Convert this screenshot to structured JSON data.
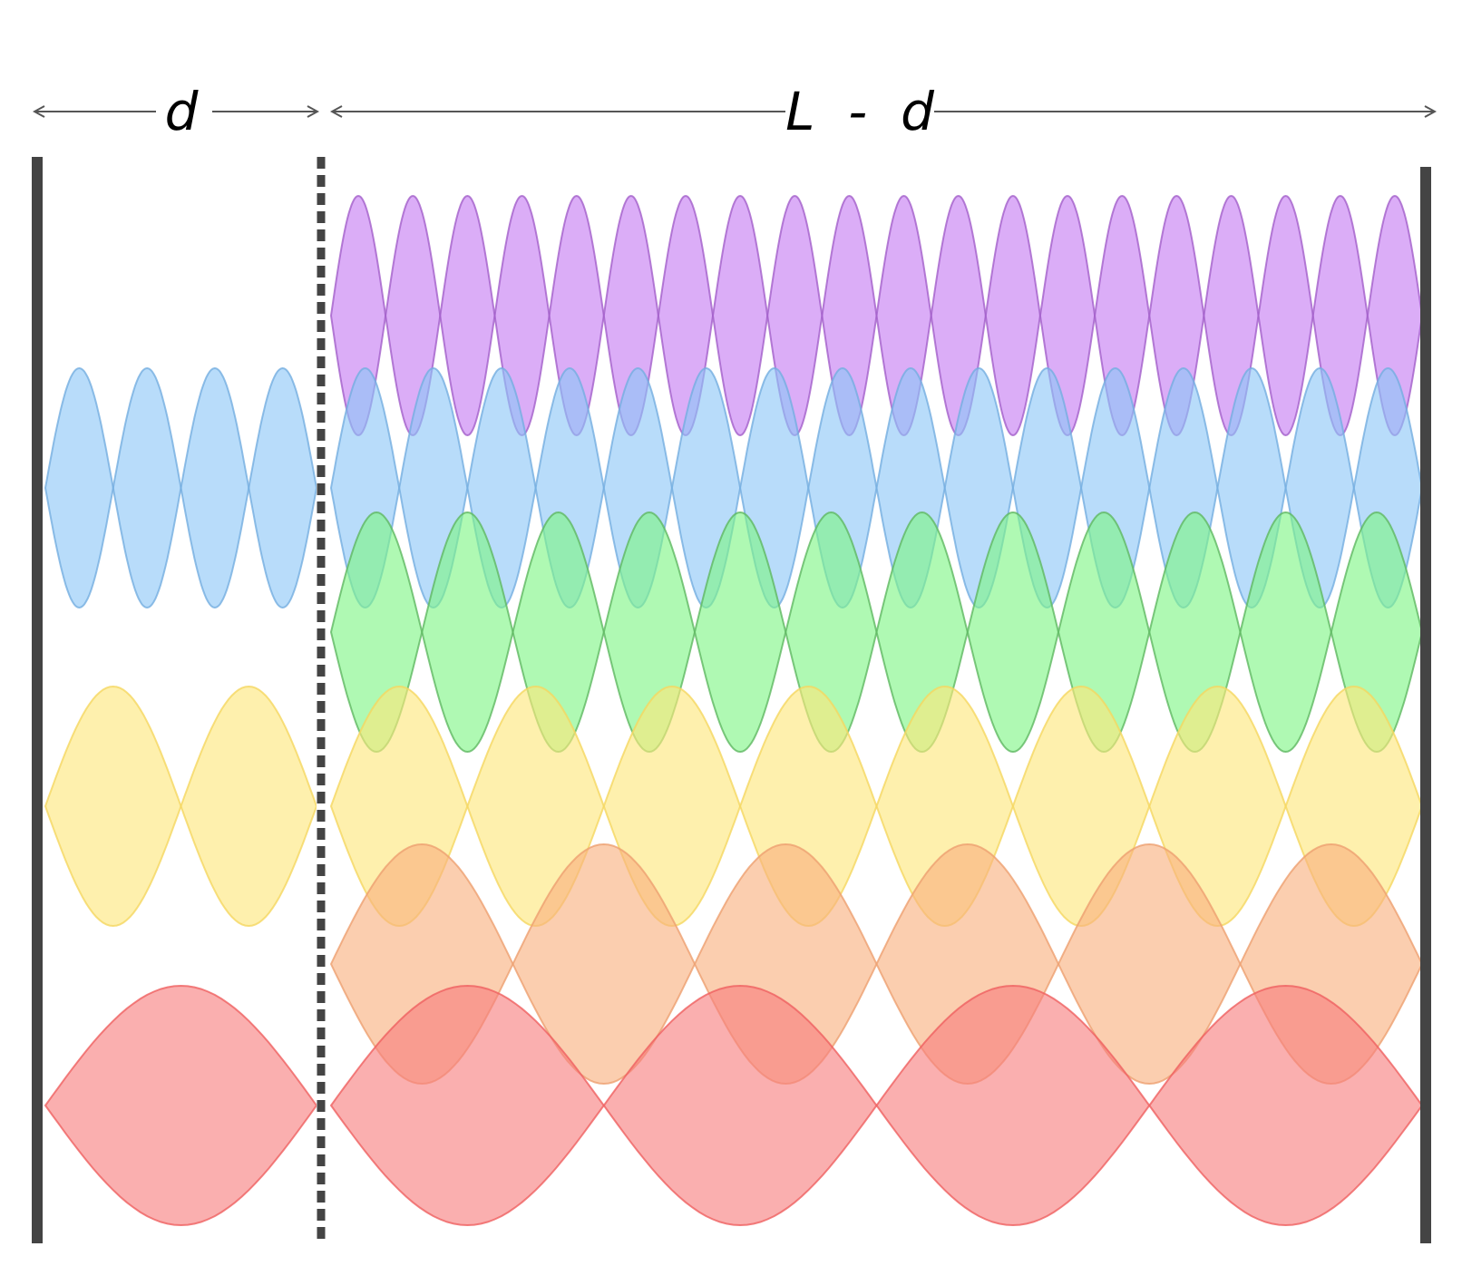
{
  "labels": {
    "short_segment": "d",
    "long_segment": "L  -  d"
  },
  "colors": {
    "wall": "#444444",
    "arrow": "#555555",
    "partition_dark": "#444444",
    "partition_light": "#ffffff"
  },
  "rows": [
    {
      "name": "purple-mode",
      "fill": "#c57af2",
      "stroke": "#a35fc9",
      "loops_left": 0,
      "loops_right": 20
    },
    {
      "name": "blue-mode",
      "fill": "#8cc6f7",
      "stroke": "#74aee0",
      "loops_left": 4,
      "loops_right": 16
    },
    {
      "name": "green-mode",
      "fill": "#7ef584",
      "stroke": "#5fb862",
      "loops_left": 0,
      "loops_right": 12
    },
    {
      "name": "yellow-mode",
      "fill": "#fde67a",
      "stroke": "#f5d760",
      "loops_left": 2,
      "loops_right": 8
    },
    {
      "name": "orange-mode",
      "fill": "#f9b07e",
      "stroke": "#eea070",
      "loops_left": 0,
      "loops_right": 6
    },
    {
      "name": "red-mode",
      "fill": "#f77e7e",
      "stroke": "#ef6060",
      "loops_left": 1,
      "loops_right": 4
    }
  ]
}
